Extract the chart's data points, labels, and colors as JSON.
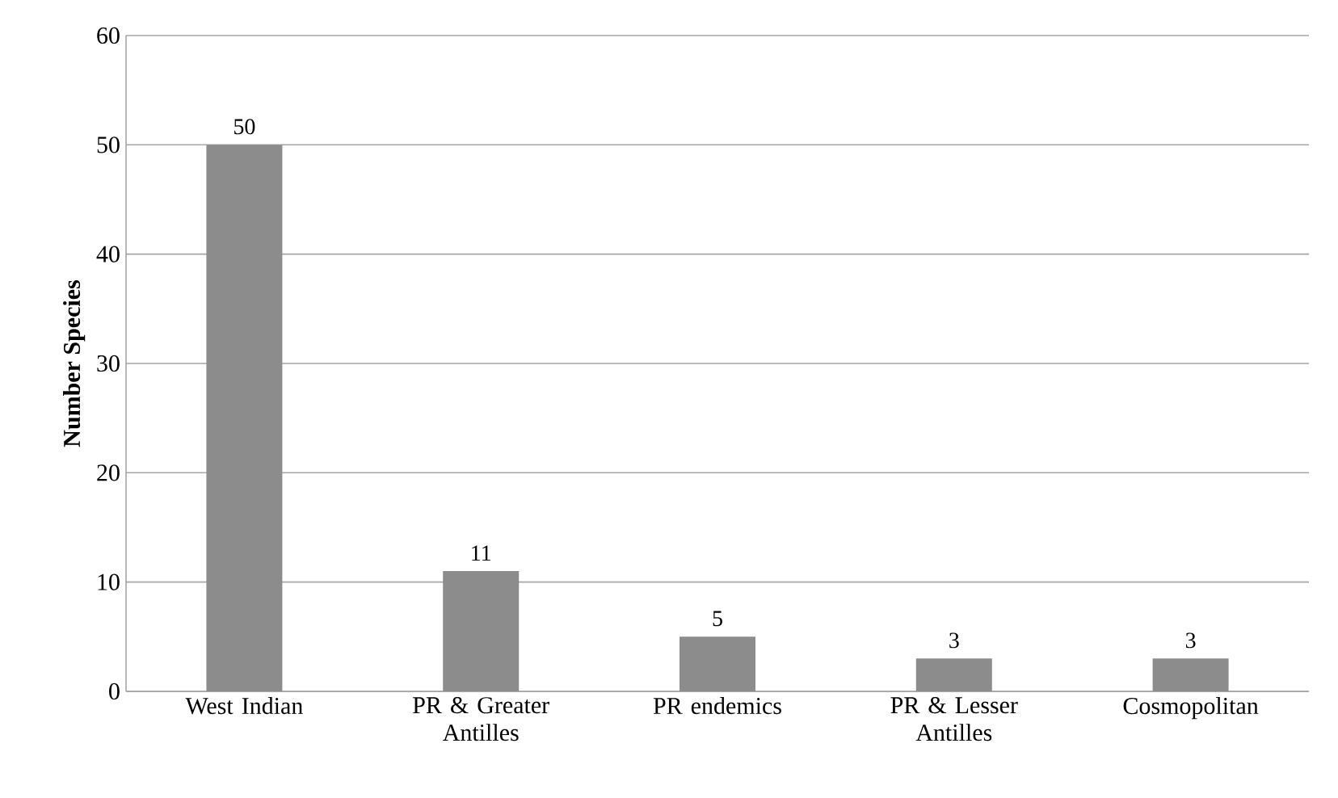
{
  "chart_data": {
    "type": "bar",
    "ylabel": "Number Species",
    "categories": [
      "West Indian",
      "PR & Greater Antilles",
      "PR endemics",
      "PR & Lesser Antilles",
      "Cosmopolitan"
    ],
    "values": [
      50,
      11,
      5,
      3,
      3
    ],
    "color": "#8c8c8c",
    "ylim": [
      0,
      60
    ],
    "yticks": [
      0,
      10,
      20,
      30,
      40,
      50,
      60
    ],
    "grid": "y",
    "data_labels": true
  }
}
